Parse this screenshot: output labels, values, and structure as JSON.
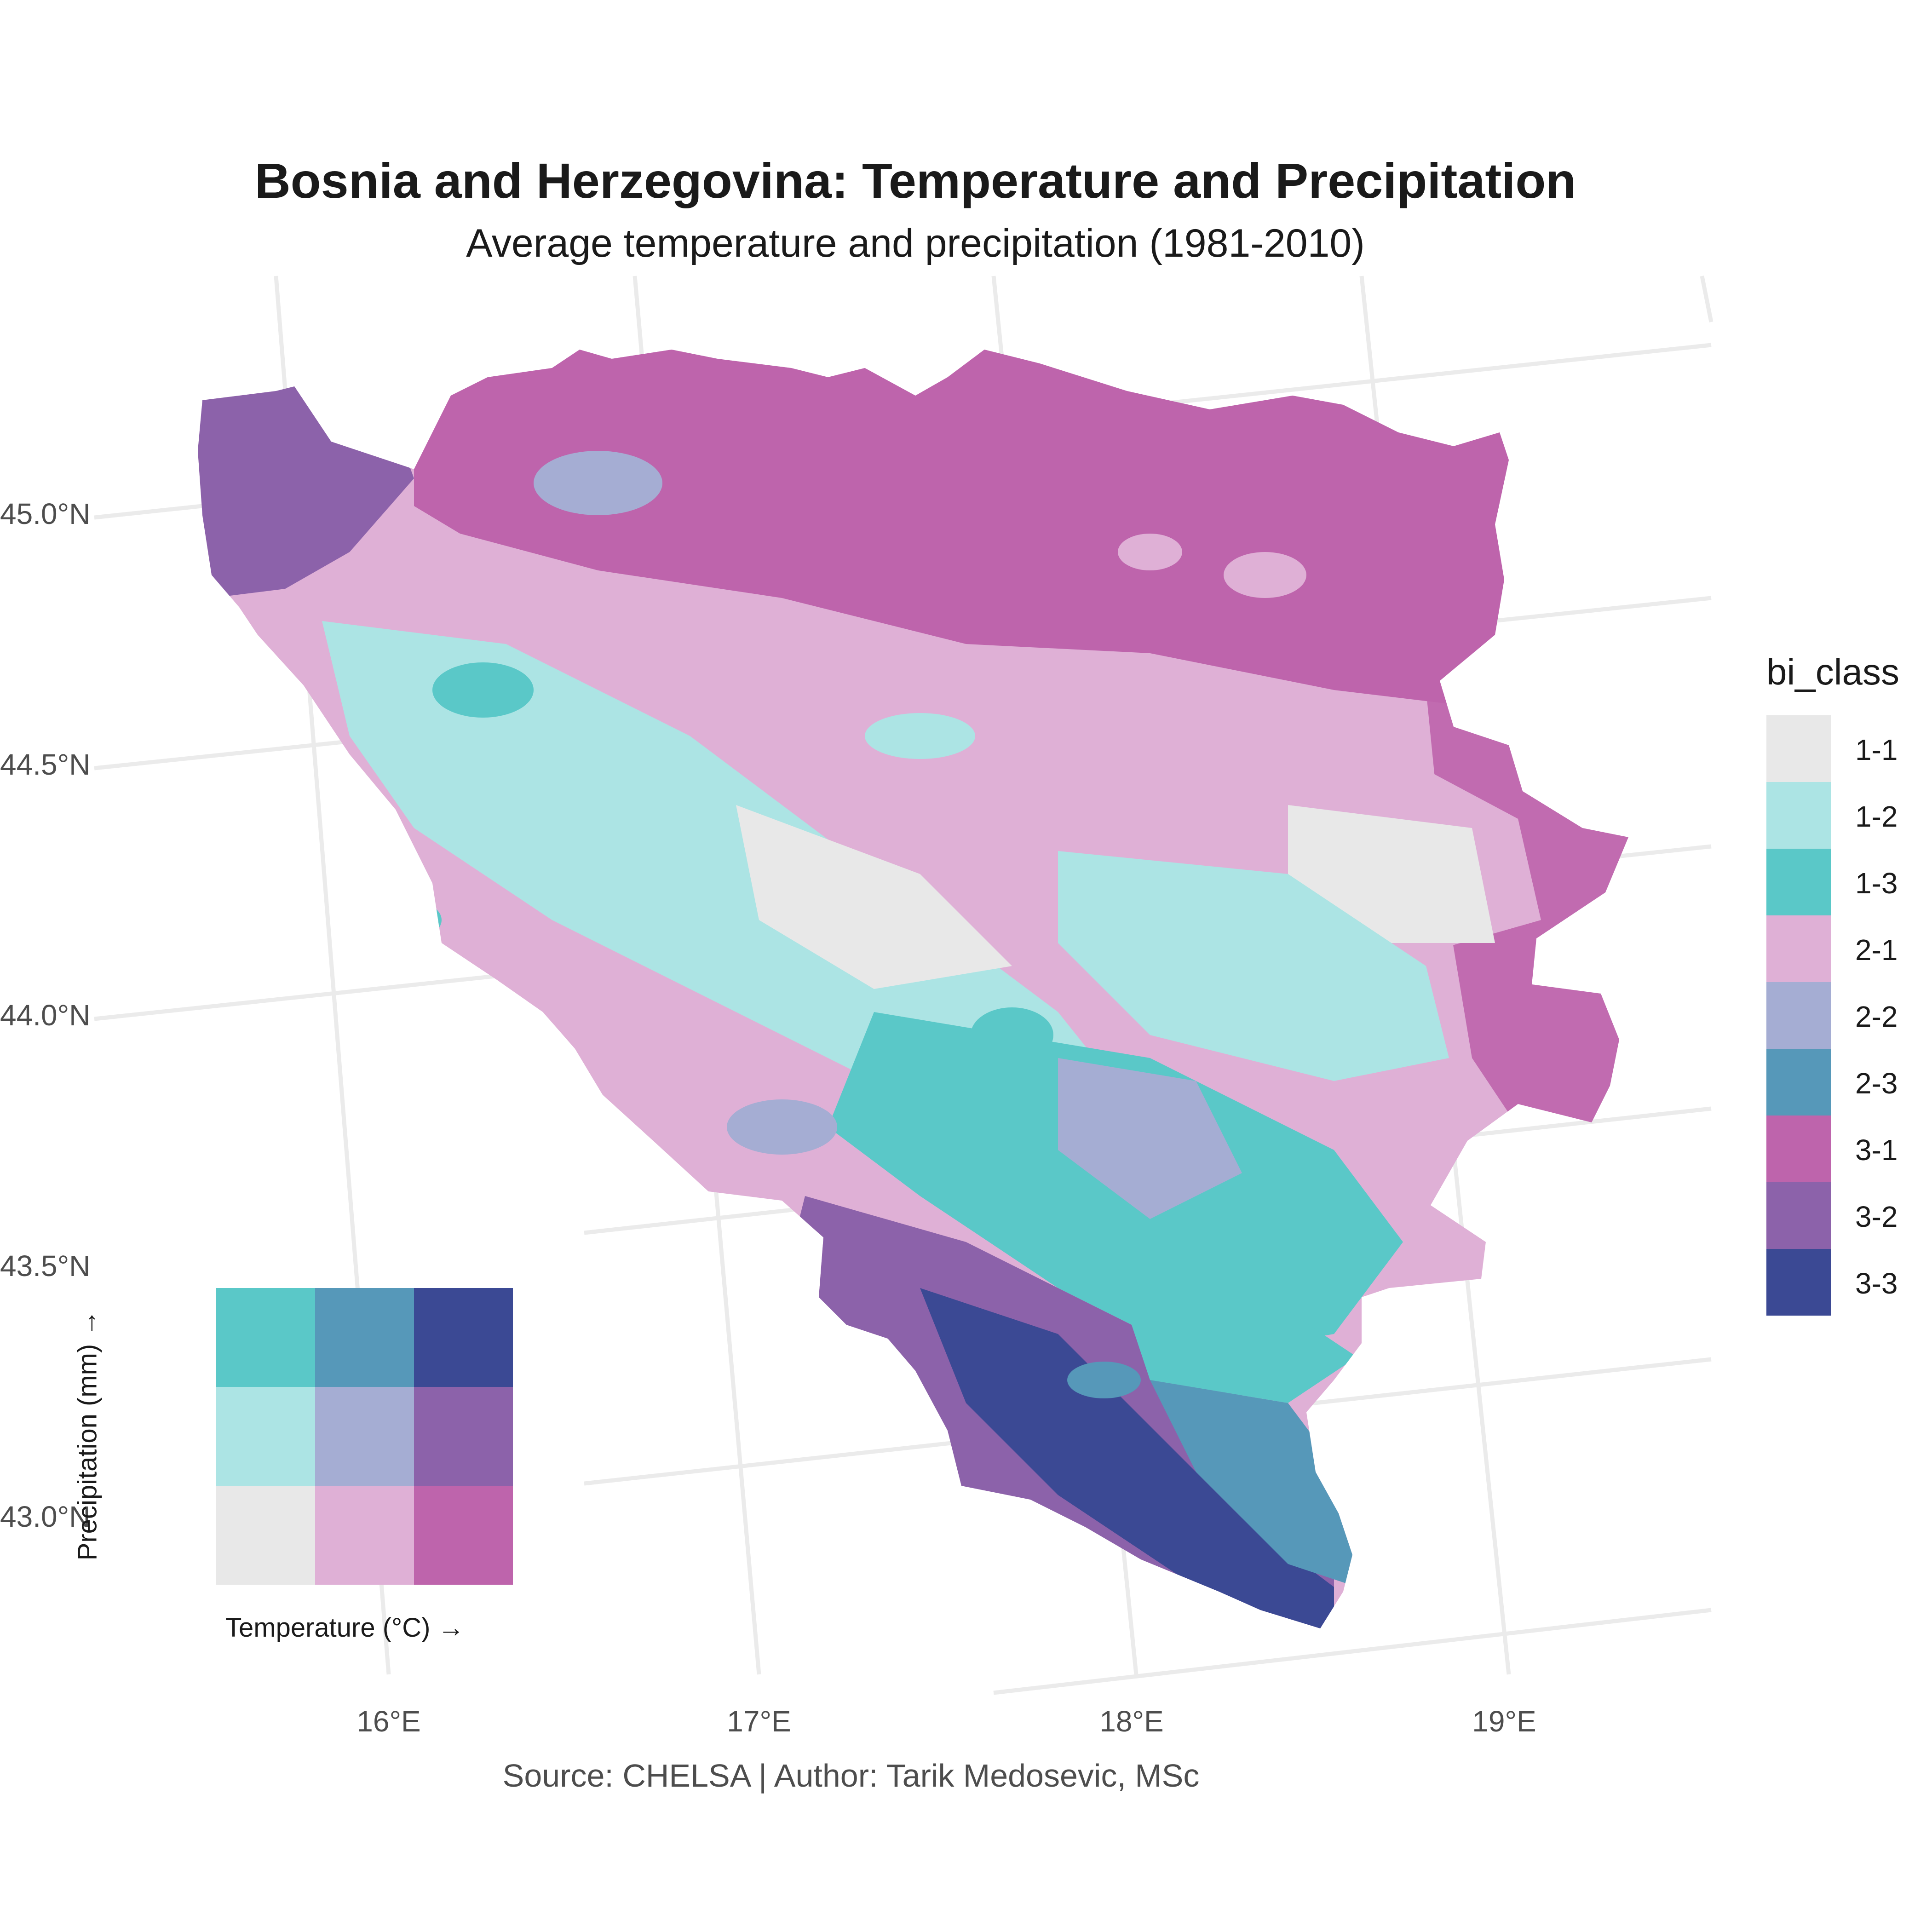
{
  "title": "Bosnia and Herzegovina: Temperature and Precipitation",
  "subtitle": "Average temperature and precipitation (1981-2010)",
  "caption": "Source: CHELSA | Author: Tarik Medosevic, MSc",
  "axes": {
    "lat_labels": [
      "45.0°N",
      "44.5°N",
      "44.0°N",
      "43.5°N",
      "43.0°N"
    ],
    "lon_labels": [
      "16°E",
      "17°E",
      "18°E",
      "19°E"
    ]
  },
  "legend": {
    "title": "bi_class",
    "items": [
      {
        "label": "1-1",
        "color": "#e8e8e8"
      },
      {
        "label": "1-2",
        "color": "#ace4e4"
      },
      {
        "label": "1-3",
        "color": "#5ac8c8"
      },
      {
        "label": "2-1",
        "color": "#dfb0d6"
      },
      {
        "label": "2-2",
        "color": "#a5add3"
      },
      {
        "label": "2-3",
        "color": "#5698b9"
      },
      {
        "label": "3-1",
        "color": "#be64ac"
      },
      {
        "label": "3-2",
        "color": "#8c62aa"
      },
      {
        "label": "3-3",
        "color": "#3b4994"
      }
    ]
  },
  "bivariate_legend": {
    "x_label": "Temperature (°C) →",
    "y_label": "Precipitation (mm) →"
  }
}
